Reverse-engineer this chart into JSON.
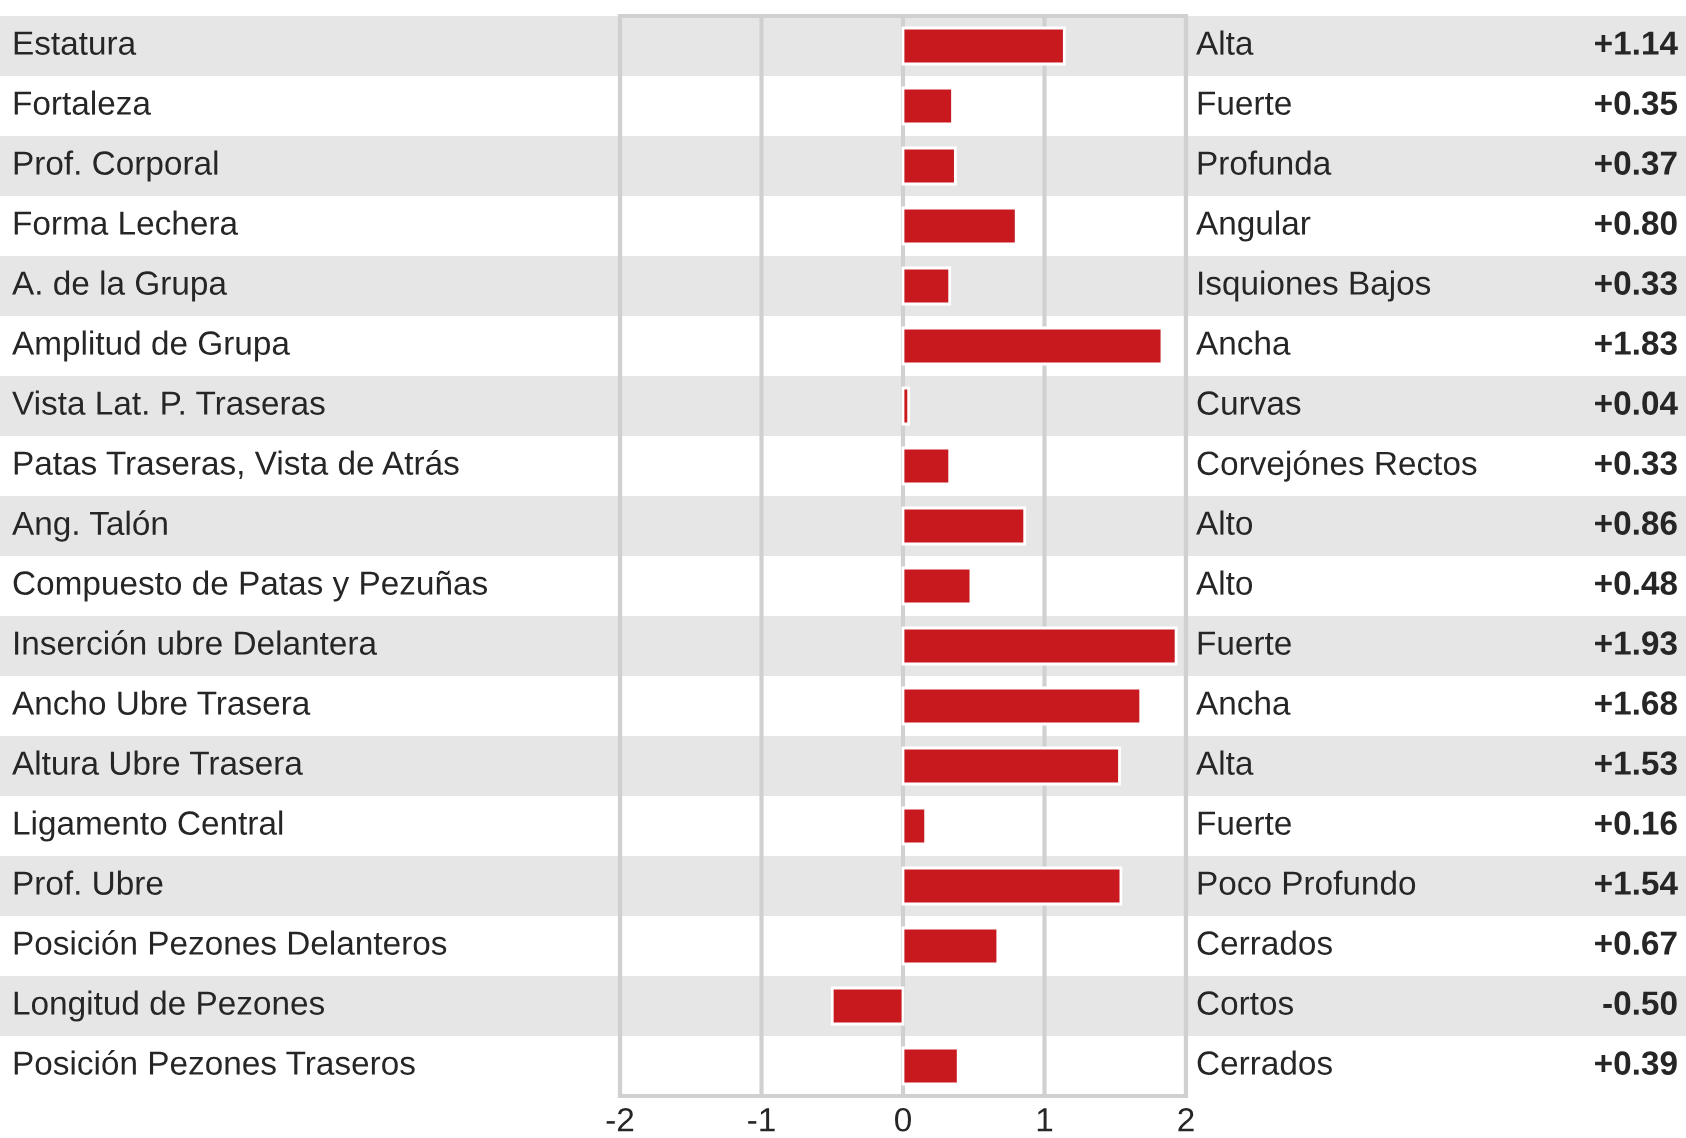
{
  "chart_data": {
    "type": "bar",
    "orientation": "horizontal",
    "color": "#c8191f",
    "categories": [
      "Estatura",
      "Fortaleza",
      "Prof. Corporal",
      "Forma Lechera",
      "A. de la Grupa",
      "Amplitud de Grupa",
      "Vista Lat. P. Traseras",
      "Patas Traseras, Vista de Atrás",
      "Ang. Talón",
      "Compuesto de Patas y Pezuñas",
      "Inserción ubre Delantera",
      "Ancho Ubre Trasera",
      "Altura Ubre Trasera",
      "Ligamento Central",
      "Prof. Ubre",
      "Posición Pezones Delanteros",
      "Longitud de Pezones",
      "Posición Pezones Traseros"
    ],
    "values": [
      1.14,
      0.35,
      0.37,
      0.8,
      0.33,
      1.83,
      0.04,
      0.33,
      0.86,
      0.48,
      1.93,
      1.68,
      1.53,
      0.16,
      1.54,
      0.67,
      -0.5,
      0.39
    ],
    "value_labels": [
      "+1.14",
      "+0.35",
      "+0.37",
      "+0.80",
      "+0.33",
      "+1.83",
      "+0.04",
      "+0.33",
      "+0.86",
      "+0.48",
      "+1.93",
      "+1.68",
      "+1.53",
      "+0.16",
      "+1.54",
      "+0.67",
      "-0.50",
      "+0.39"
    ],
    "annotations": [
      "Alta",
      "Fuerte",
      "Profunda",
      "Angular",
      "Isquiones Bajos",
      "Ancha",
      "Curvas",
      "Corvejónes Rectos",
      "Alto",
      "Alto",
      "Fuerte",
      "Ancha",
      "Alta",
      "Fuerte",
      "Poco Profundo",
      "Cerrados",
      "Cortos",
      "Cerrados"
    ],
    "xlim": [
      -2,
      2
    ],
    "xticks": [
      -2,
      -1,
      0,
      1,
      2
    ],
    "grid": "x",
    "legend": false
  }
}
